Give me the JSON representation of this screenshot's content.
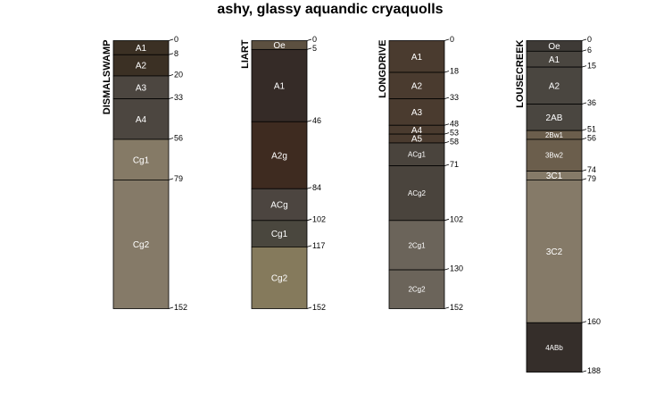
{
  "title": "ashy, glassy aquandic cryaquolls",
  "chart_data": {
    "type": "table",
    "depth_unit": "cm",
    "profiles": [
      {
        "name": "DISMALSWAMP",
        "horizons": [
          {
            "name": "A1",
            "top": 0,
            "bottom": 8,
            "color": "#3b3024"
          },
          {
            "name": "A2",
            "top": 8,
            "bottom": 20,
            "color": "#3b3024"
          },
          {
            "name": "A3",
            "top": 20,
            "bottom": 33,
            "color": "#4c4640"
          },
          {
            "name": "A4",
            "top": 33,
            "bottom": 56,
            "color": "#4c4640"
          },
          {
            "name": "Cg1",
            "top": 56,
            "bottom": 79,
            "color": "#857a66"
          },
          {
            "name": "Cg2",
            "top": 79,
            "bottom": 152,
            "color": "#857a68"
          }
        ],
        "depth_labels": [
          "0",
          "8",
          "20",
          "33",
          "56",
          "79",
          "152"
        ]
      },
      {
        "name": "LIART",
        "horizons": [
          {
            "name": "Oe",
            "top": 0,
            "bottom": 5,
            "color": "#5c5040"
          },
          {
            "name": "A1",
            "top": 5,
            "bottom": 46,
            "color": "#352b27"
          },
          {
            "name": "A2g",
            "top": 46,
            "bottom": 84,
            "color": "#3e2b20"
          },
          {
            "name": "ACg",
            "top": 84,
            "bottom": 102,
            "color": "#4c4540"
          },
          {
            "name": "Cg1",
            "top": 102,
            "bottom": 117,
            "color": "#4a473e"
          },
          {
            "name": "Cg2",
            "top": 117,
            "bottom": 152,
            "color": "#857a5c"
          }
        ],
        "depth_labels": [
          "0",
          "5",
          "46",
          "84",
          "102",
          "117",
          "152"
        ]
      },
      {
        "name": "LONGDRIVE",
        "horizons": [
          {
            "name": "A1",
            "top": 0,
            "bottom": 18,
            "color": "#4a3b2f"
          },
          {
            "name": "A2",
            "top": 18,
            "bottom": 33,
            "color": "#4a3b2f"
          },
          {
            "name": "A3",
            "top": 33,
            "bottom": 48,
            "color": "#4a3b2f"
          },
          {
            "name": "A4",
            "top": 48,
            "bottom": 53,
            "color": "#4a3b2f"
          },
          {
            "name": "A5",
            "top": 53,
            "bottom": 58,
            "color": "#4a3b2f"
          },
          {
            "name": "ACg1",
            "top": 58,
            "bottom": 71,
            "color": "#4a443d"
          },
          {
            "name": "ACg2",
            "top": 71,
            "bottom": 102,
            "color": "#4a443d"
          },
          {
            "name": "2Cg1",
            "top": 102,
            "bottom": 130,
            "color": "#6b645a"
          },
          {
            "name": "2Cg2",
            "top": 130,
            "bottom": 152,
            "color": "#6b645a"
          }
        ],
        "depth_labels": [
          "0",
          "18",
          "33",
          "48",
          "53",
          "58",
          "71",
          "102",
          "130",
          "152"
        ]
      },
      {
        "name": "LOUSECREEK",
        "horizons": [
          {
            "name": "Oe",
            "top": 0,
            "bottom": 6,
            "color": "#3e3a36"
          },
          {
            "name": "A1",
            "top": 6,
            "bottom": 15,
            "color": "#4a4640"
          },
          {
            "name": "A2",
            "top": 15,
            "bottom": 36,
            "color": "#4a4640"
          },
          {
            "name": "2AB",
            "top": 36,
            "bottom": 51,
            "color": "#4a4640"
          },
          {
            "name": "2Bw1",
            "top": 51,
            "bottom": 56,
            "color": "#6b5e4c"
          },
          {
            "name": "3Bw2",
            "top": 56,
            "bottom": 74,
            "color": "#6b5e4c"
          },
          {
            "name": "3C1",
            "top": 74,
            "bottom": 79,
            "color": "#857a68"
          },
          {
            "name": "3C2",
            "top": 79,
            "bottom": 160,
            "color": "#857a68"
          },
          {
            "name": "4ABb",
            "top": 160,
            "bottom": 188,
            "color": "#352e2a"
          }
        ],
        "depth_labels": [
          "0",
          "6",
          "15",
          "36",
          "51",
          "56",
          "74",
          "79",
          "160",
          "188"
        ]
      }
    ]
  }
}
